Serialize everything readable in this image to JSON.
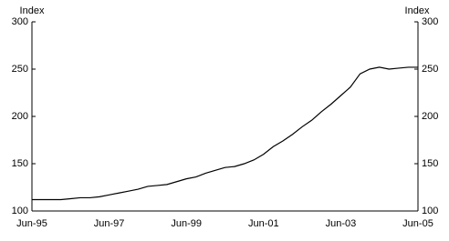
{
  "chart_data": {
    "type": "line",
    "y_label": "Index",
    "y2_label": "Index",
    "categories": [
      "Jun-95",
      null,
      null,
      null,
      null,
      null,
      null,
      null,
      "Jun-97",
      null,
      null,
      null,
      null,
      null,
      null,
      null,
      "Jun-99",
      null,
      null,
      null,
      null,
      null,
      null,
      null,
      "Jun-01",
      null,
      null,
      null,
      null,
      null,
      null,
      null,
      "Jun-03",
      null,
      null,
      null,
      null,
      null,
      null,
      null,
      "Jun-05"
    ],
    "series": [
      {
        "color": "#000000",
        "values": [
          112,
          112,
          112,
          112,
          113,
          114,
          114,
          115,
          117,
          119,
          121,
          123,
          126,
          127,
          128,
          131,
          134,
          136,
          140,
          143,
          146,
          147,
          150,
          154,
          160,
          168,
          174,
          181,
          189,
          196,
          205,
          213,
          222,
          231,
          245,
          250,
          252,
          250,
          251,
          252,
          252
        ]
      }
    ],
    "ylim": [
      100,
      300
    ],
    "yticks": [
      100,
      150,
      200,
      250,
      300
    ],
    "y2lim": [
      100,
      300
    ],
    "y2ticks": [
      100,
      150,
      200,
      250,
      300
    ]
  }
}
